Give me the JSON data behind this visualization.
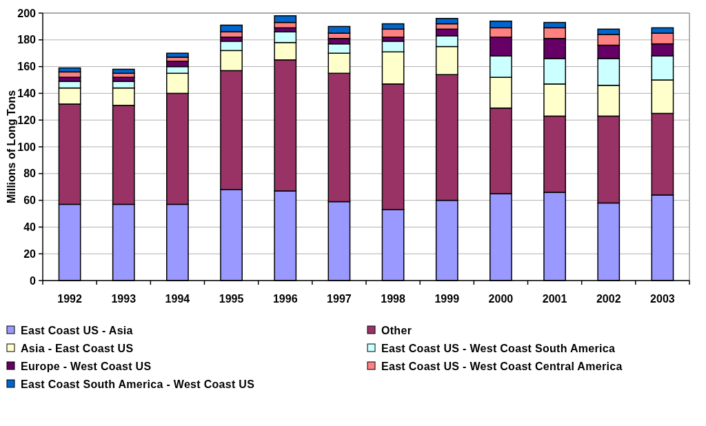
{
  "chart_data": {
    "type": "bar",
    "stacked": true,
    "ylabel": "Millions of Long Tons",
    "categories": [
      "1992",
      "1993",
      "1994",
      "1995",
      "1996",
      "1997",
      "1998",
      "1999",
      "2000",
      "2001",
      "2002",
      "2003"
    ],
    "ylim": [
      0,
      200
    ],
    "yticks": [
      0,
      20,
      40,
      60,
      80,
      100,
      120,
      140,
      160,
      180,
      200
    ],
    "grid": "y",
    "legend": "bottom",
    "series": [
      {
        "name": "East Coast US - Asia",
        "color": "#9999ff",
        "values": [
          57,
          57,
          57,
          68,
          67,
          59,
          53,
          60,
          65,
          66,
          58,
          64
        ]
      },
      {
        "name": "Other",
        "color": "#993366",
        "values": [
          75,
          74,
          83,
          89,
          98,
          96,
          94,
          94,
          64,
          57,
          65,
          61
        ]
      },
      {
        "name": "Asia - East Coast US",
        "color": "#ffffcc",
        "values": [
          12,
          13,
          15,
          15,
          13,
          15,
          24,
          21,
          23,
          24,
          23,
          25
        ]
      },
      {
        "name": "East Coast US - West Coast South America",
        "color": "#ccffff",
        "values": [
          5,
          5,
          5,
          7,
          8,
          7,
          8,
          8,
          16,
          19,
          20,
          18
        ]
      },
      {
        "name": "Europe - West Coast US",
        "color": "#660066",
        "values": [
          3,
          3,
          4,
          3,
          3,
          4,
          3,
          5,
          14,
          15,
          10,
          9
        ]
      },
      {
        "name": "East Coast US - West Coast Central America",
        "color": "#ff8080",
        "values": [
          4,
          3,
          3,
          4,
          4,
          4,
          6,
          4,
          7,
          8,
          8,
          8
        ]
      },
      {
        "name": "East Coast South America - West Coast US",
        "color": "#0066cc",
        "values": [
          3,
          3,
          3,
          5,
          5,
          5,
          4,
          4,
          5,
          4,
          4,
          4
        ]
      }
    ]
  }
}
